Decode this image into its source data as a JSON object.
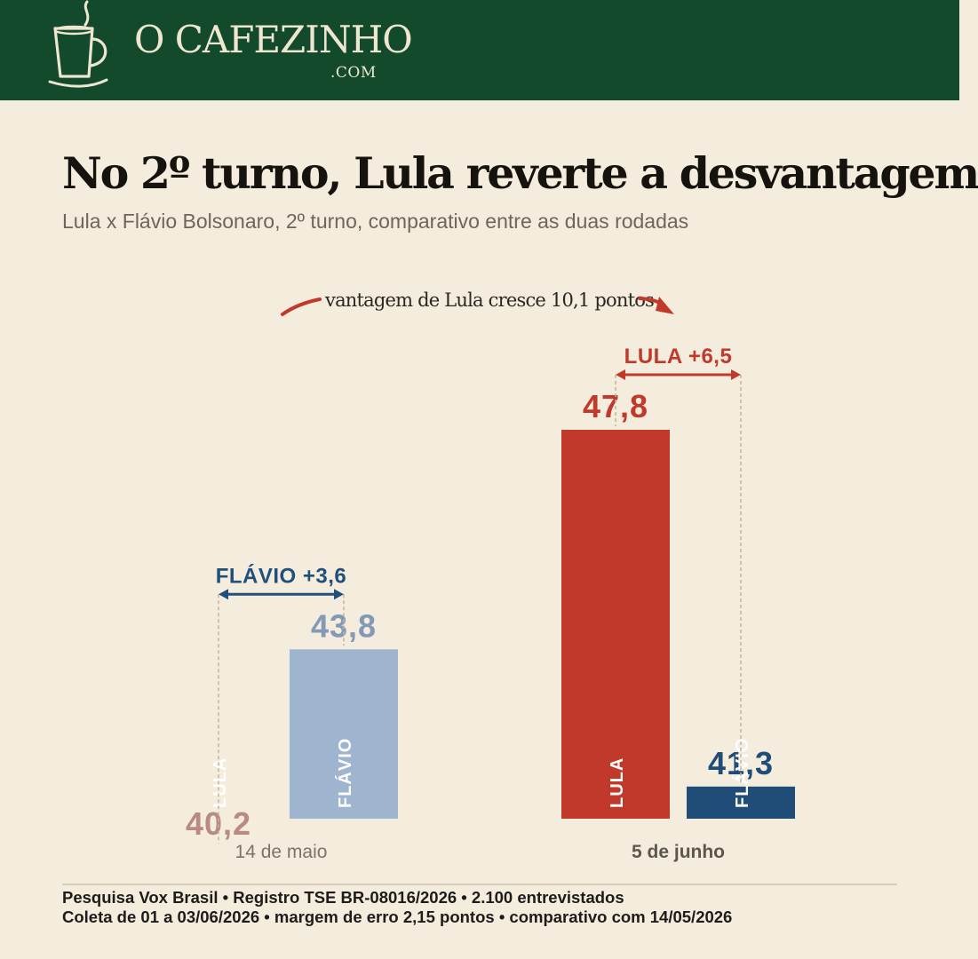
{
  "brand": {
    "name": "O CAFEZINHO",
    "domain": ".COM"
  },
  "title": "No 2º turno, Lula reverte a desvantagem",
  "subtitle": "Lula x Flávio Bolsonaro, 2º turno, comparativo entre as duas rodadas",
  "annotation": "vantagem de Lula cresce 10,1 pontos",
  "chart_data": {
    "type": "bar",
    "categories": [
      "14 de maio",
      "5 de junho"
    ],
    "series": [
      {
        "name": "LULA",
        "values": [
          40.2,
          47.8
        ],
        "colors": [
          "#E3A39D",
          "#C1392B"
        ]
      },
      {
        "name": "FLÁVIO",
        "values": [
          43.8,
          41.3
        ],
        "colors": [
          "#9FB4CE",
          "#204D78"
        ]
      }
    ],
    "value_labels": [
      [
        "40,2",
        "47,8"
      ],
      [
        "43,8",
        "41,3"
      ]
    ],
    "leads": [
      {
        "label": "FLÁVIO +3,6",
        "color": "#1F4F7A"
      },
      {
        "label": "LULA +6,5",
        "color": "#C1392B"
      }
    ],
    "ylim": [
      0,
      48
    ],
    "grid": false
  },
  "footer": {
    "line1": "Pesquisa Vox Brasil  •  Registro TSE BR-08016/2026  •  2.100 entrevistados",
    "line2": "Coleta de 01 a 03/06/2026  •  margem de erro 2,15 pontos  •  comparativo com 14/05/2026"
  },
  "colors": {
    "header": "#124A2B",
    "background": "#F4ECDD",
    "arrow": "#C1392B"
  }
}
